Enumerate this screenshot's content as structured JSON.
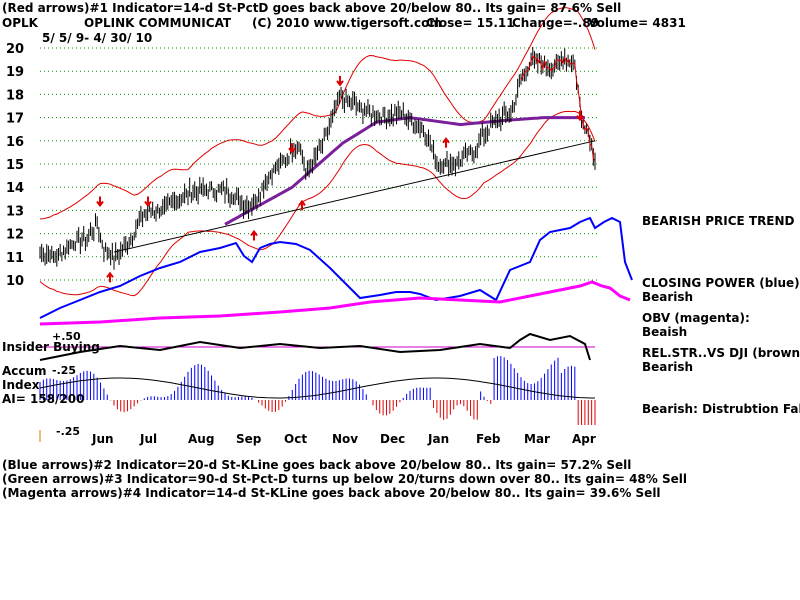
{
  "header": {
    "line1": "(Red arrows)#1 Indicator=14-d St-PctD goes back above 20/below 80.. Its gain= 87.6% Sell",
    "ticker": "OPLK",
    "company": "OPLINK COMMUNICAT",
    "copyright": "(C) 2010 www.tigersoft.com",
    "close": "Close=  15.11",
    "change": "Change=-.89",
    "volume": "Volume= 4831",
    "date_range": "5/ 5/ 9- 4/ 30/ 10"
  },
  "panel_labels": {
    "insider_buying": "Insider Buying",
    "plus50": "+.50",
    "accum": "Accum",
    "minus25a": "-.25",
    "index": "Index",
    "ai": "AI= 158/200",
    "minus25b": "-.25"
  },
  "right_notes": [
    {
      "text": "BEARISH PRICE TREND"
    },
    {
      "text": "CLOSING POWER (blue):"
    },
    {
      "text": "Bearish"
    },
    {
      "text": "OBV (magenta):"
    },
    {
      "text": "Beaish"
    },
    {
      "text": "REL.STR..VS DJI (brown):"
    },
    {
      "text": "Bearish"
    },
    {
      "text": "Bearish:  Distrubtion Falling."
    }
  ],
  "footer": [
    {
      "text": "(Blue arrows)#2 Indicator=20-d St-KLine goes back above 20/below 80.. Its gain= 57.2% Sell"
    },
    {
      "text": "(Green arrows)#3 Indicator=90-d St-Pct-D turns up below 20/turns down over 80.. Its gain= 48% Sell"
    },
    {
      "text": "(Magenta arrows)#4 Indicator=14-d St-KLine goes back above 20/below 80.. Its gain= 39.6% Sell"
    }
  ],
  "chart_data": {
    "type": "line",
    "title": "OPLINK COMMUNICAT",
    "ylim": [
      9.5,
      20.5
    ],
    "y_ticks": [
      "20",
      "19",
      "18",
      "17",
      "16",
      "15",
      "14",
      "13",
      "12",
      "11",
      "10"
    ],
    "x_ticks": [
      "Jun",
      "Jul",
      "Aug",
      "Sep",
      "Oct",
      "Nov",
      "Dec",
      "Jan",
      "Feb",
      "Mar",
      "Apr"
    ],
    "price_knots": [
      [
        0,
        11.2
      ],
      [
        10,
        11.0
      ],
      [
        20,
        11.6
      ],
      [
        28,
        11.8
      ],
      [
        34,
        12.4
      ],
      [
        38,
        11.3
      ],
      [
        44,
        11.0
      ],
      [
        52,
        11.5
      ],
      [
        62,
        12.9
      ],
      [
        72,
        13.0
      ],
      [
        82,
        13.5
      ],
      [
        90,
        13.8
      ],
      [
        100,
        13.9
      ],
      [
        112,
        13.8
      ],
      [
        122,
        13.2
      ],
      [
        128,
        13.4
      ],
      [
        136,
        14.5
      ],
      [
        146,
        15.2
      ],
      [
        154,
        16.0
      ],
      [
        158,
        14.6
      ],
      [
        164,
        15.2
      ],
      [
        170,
        16.2
      ],
      [
        178,
        17.9
      ],
      [
        186,
        17.6
      ],
      [
        196,
        17.2
      ],
      [
        206,
        17.0
      ],
      [
        214,
        17.2
      ],
      [
        222,
        16.8
      ],
      [
        230,
        16.3
      ],
      [
        236,
        15.0
      ],
      [
        246,
        15.0
      ],
      [
        256,
        15.4
      ],
      [
        264,
        16.3
      ],
      [
        272,
        16.9
      ],
      [
        280,
        17.2
      ],
      [
        286,
        18.6
      ],
      [
        292,
        19.5
      ],
      [
        298,
        19.3
      ],
      [
        306,
        19.2
      ],
      [
        312,
        19.6
      ],
      [
        318,
        19.3
      ],
      [
        322,
        17.0
      ],
      [
        326,
        16.4
      ],
      [
        330,
        15.11
      ]
    ],
    "ma_knots": [
      [
        110,
        12.4
      ],
      [
        150,
        14.0
      ],
      [
        180,
        15.9
      ],
      [
        200,
        16.8
      ],
      [
        220,
        17.0
      ],
      [
        250,
        16.7
      ],
      [
        280,
        16.9
      ],
      [
        300,
        17.0
      ],
      [
        325,
        17.0
      ]
    ],
    "trendline": [
      [
        44,
        11.2
      ],
      [
        330,
        16.0
      ]
    ],
    "series": [
      {
        "name": "Closing Power",
        "color": "#0000ff"
      },
      {
        "name": "OBV",
        "color": "#ff00ff"
      },
      {
        "name": "Rel.Str. vs DJI",
        "color": "#000000"
      },
      {
        "name": "Accum Index",
        "color": "#0000ff"
      }
    ],
    "sell_arrows": [
      [
        "Jun",
        13.6
      ],
      [
        "Jul",
        13.6
      ],
      [
        "Oct",
        15.9
      ],
      [
        "Nov",
        18.8
      ],
      [
        "Apr",
        17.3
      ]
    ],
    "buy_arrows": [
      [
        "Jun",
        9.9
      ],
      [
        "Sep",
        11.7
      ],
      [
        "Oct",
        13.0
      ],
      [
        "Jan",
        15.7
      ]
    ]
  }
}
